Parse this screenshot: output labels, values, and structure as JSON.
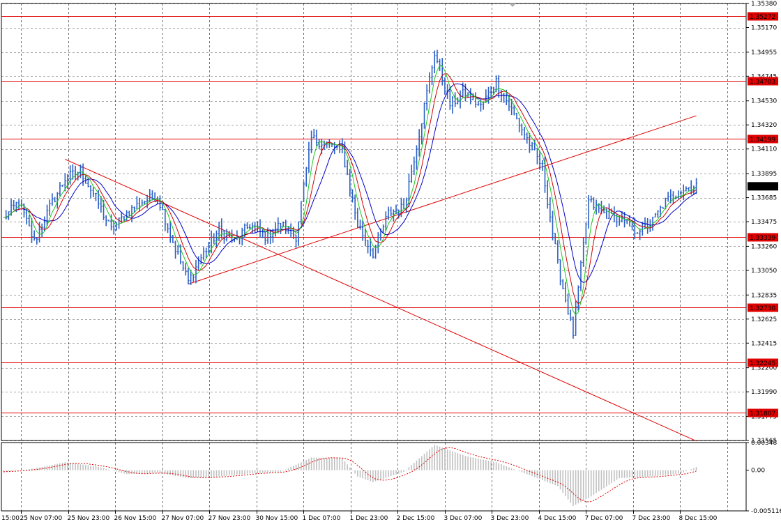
{
  "chart_data": {
    "type": "candlestick",
    "price_axis": {
      "min": 1.31565,
      "max": 1.3538,
      "ticks": [
        "1.35380",
        "1.35170",
        "1.34955",
        "1.34745",
        "1.34530",
        "1.34320",
        "1.34110",
        "1.33895",
        "1.33685",
        "1.33475",
        "1.33260",
        "1.33050",
        "1.32835",
        "1.32625",
        "1.32415",
        "1.32200",
        "1.31990",
        "1.31775",
        "1.31565"
      ],
      "current_price": "1.33784"
    },
    "time_axis": {
      "labels": [
        "15:00",
        "25 Nov 07:00",
        "25 Nov 23:00",
        "26 Nov 15:00",
        "27 Nov 07:00",
        "27 Nov 23:00",
        "30 Nov 15:00",
        "1 Dec 07:00",
        "1 Dec 23:00",
        "2 Dec 15:00",
        "3 Dec 07:00",
        "3 Dec 23:00",
        "4 Dec 15:00",
        "7 Dec 07:00",
        "7 Dec 23:00",
        "8 Dec 15:00"
      ]
    },
    "horizontal_levels": [
      {
        "label": "1.35272",
        "value": 1.35272
      },
      {
        "label": "1.34703",
        "value": 1.34703
      },
      {
        "label": "1.34199",
        "value": 1.34199
      },
      {
        "label": "1.33339",
        "value": 1.33339
      },
      {
        "label": "1.32730",
        "value": 1.3273
      },
      {
        "label": "1.32245",
        "value": 1.32245
      },
      {
        "label": "1.31807",
        "value": 1.31807
      }
    ],
    "trend_lines": [
      {
        "from": {
          "bar": 24,
          "price": 1.3402
        },
        "to": {
          "bar": 270,
          "price": 1.3156
        }
      },
      {
        "from": {
          "bar": 72,
          "price": 1.3293
        },
        "to": {
          "bar": 270,
          "price": 1.344
        }
      }
    ],
    "price_path": [
      [
        0,
        1.335
      ],
      [
        6,
        1.3365
      ],
      [
        12,
        1.333
      ],
      [
        18,
        1.336
      ],
      [
        24,
        1.3385
      ],
      [
        30,
        1.3392
      ],
      [
        36,
        1.3368
      ],
      [
        42,
        1.334
      ],
      [
        48,
        1.3355
      ],
      [
        54,
        1.3365
      ],
      [
        60,
        1.337
      ],
      [
        66,
        1.333
      ],
      [
        72,
        1.3295
      ],
      [
        78,
        1.332
      ],
      [
        84,
        1.334
      ],
      [
        90,
        1.333
      ],
      [
        96,
        1.3345
      ],
      [
        102,
        1.3335
      ],
      [
        108,
        1.3345
      ],
      [
        114,
        1.3335
      ],
      [
        120,
        1.342
      ],
      [
        126,
        1.3415
      ],
      [
        132,
        1.341
      ],
      [
        138,
        1.3345
      ],
      [
        144,
        1.332
      ],
      [
        150,
        1.3355
      ],
      [
        156,
        1.336
      ],
      [
        162,
        1.3425
      ],
      [
        168,
        1.3495
      ],
      [
        174,
        1.345
      ],
      [
        180,
        1.346
      ],
      [
        186,
        1.3448
      ],
      [
        192,
        1.347
      ],
      [
        198,
        1.3445
      ],
      [
        204,
        1.342
      ],
      [
        210,
        1.3395
      ],
      [
        216,
        1.331
      ],
      [
        222,
        1.325
      ],
      [
        228,
        1.3365
      ],
      [
        234,
        1.3355
      ],
      [
        240,
        1.335
      ],
      [
        246,
        1.334
      ],
      [
        252,
        1.3345
      ],
      [
        258,
        1.3365
      ],
      [
        264,
        1.3375
      ],
      [
        270,
        1.338
      ]
    ],
    "oscillator": {
      "ticks": [
        "0.00348",
        "0.00",
        "-0.005116"
      ],
      "min": -0.005116,
      "max": 0.00348,
      "path": [
        [
          0,
          -0.0002
        ],
        [
          12,
          0.0002
        ],
        [
          24,
          0.001
        ],
        [
          36,
          0.0005
        ],
        [
          48,
          -0.0005
        ],
        [
          60,
          -0.0003
        ],
        [
          72,
          -0.001
        ],
        [
          84,
          -0.0008
        ],
        [
          96,
          -0.0004
        ],
        [
          108,
          -0.0002
        ],
        [
          120,
          0.0016
        ],
        [
          132,
          0.0015
        ],
        [
          138,
          -0.0008
        ],
        [
          144,
          -0.0015
        ],
        [
          156,
          -0.0002
        ],
        [
          168,
          0.0032
        ],
        [
          180,
          0.0018
        ],
        [
          192,
          0.001
        ],
        [
          204,
          -0.0005
        ],
        [
          216,
          -0.002
        ],
        [
          222,
          -0.0045
        ],
        [
          228,
          -0.0035
        ],
        [
          240,
          -0.001
        ],
        [
          252,
          -0.0008
        ],
        [
          264,
          -0.0004
        ],
        [
          270,
          0.0004
        ]
      ]
    },
    "colors": {
      "candles": "#2b5fc4",
      "level_lines": "#e00000",
      "ma_fast": "#1ec81e",
      "ma_mid": "#d00000",
      "ma_slow": "#0000c8",
      "grid": "#a8a8a8",
      "oscillator_bars": "#c0c0c0",
      "oscillator_signal": "#e00000"
    }
  }
}
